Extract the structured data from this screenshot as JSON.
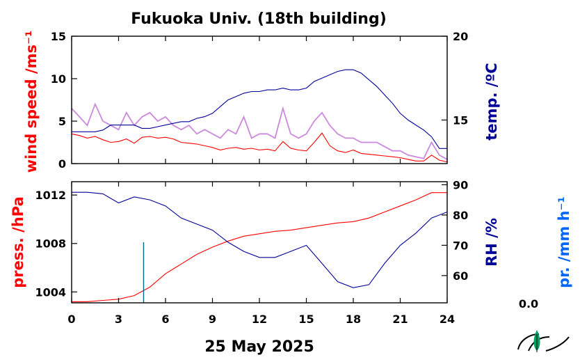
{
  "chart_data": [
    {
      "type": "line",
      "title": "Fukuoka Univ. (18th building)",
      "xlabel": "",
      "xlim": [
        0,
        24
      ],
      "x_ticks": [
        "0",
        "3",
        "6",
        "9",
        "12",
        "15",
        "18",
        "21",
        "24"
      ],
      "y_left": {
        "label": "wind speed /ms⁻¹",
        "lim": [
          0,
          15
        ],
        "ticks": [
          "0",
          "5",
          "10",
          "15"
        ],
        "color": "#ff0000"
      },
      "y_right": {
        "label": "temp. /ºC",
        "lim": [
          12.4,
          20
        ],
        "ticks": [
          "15",
          "20"
        ],
        "color": "#000099"
      },
      "series": [
        {
          "axis": "left",
          "color": "#ff0000",
          "x": [
            0,
            0.5,
            1,
            1.5,
            2,
            2.5,
            3,
            3.5,
            4,
            4.5,
            5,
            5.5,
            6,
            6.5,
            7,
            7.5,
            8,
            8.5,
            9,
            9.5,
            10,
            10.5,
            11,
            11.5,
            12,
            12.5,
            13,
            13.5,
            14,
            14.5,
            15,
            15.5,
            16,
            16.5,
            17,
            17.5,
            18,
            18.5,
            19,
            19.5,
            20,
            20.5,
            21,
            21.5,
            22,
            22.5,
            23,
            23.5,
            24
          ],
          "values": [
            3.5,
            3.3,
            3.0,
            3.2,
            2.8,
            2.5,
            2.6,
            2.9,
            2.4,
            3.1,
            3.2,
            3.0,
            3.1,
            2.9,
            2.5,
            2.4,
            2.3,
            2.1,
            1.9,
            1.6,
            1.8,
            1.9,
            1.7,
            1.8,
            1.6,
            1.7,
            1.5,
            2.6,
            1.8,
            1.6,
            1.5,
            2.5,
            3.6,
            2.1,
            1.5,
            1.3,
            1.6,
            1.2,
            1.1,
            1.0,
            0.9,
            0.8,
            0.7,
            0.5,
            0.3,
            0.3,
            1.0,
            0.4,
            0.2
          ]
        },
        {
          "axis": "left",
          "color": "#cc88dd",
          "x": [
            0,
            0.5,
            1,
            1.5,
            2,
            2.5,
            3,
            3.5,
            4,
            4.5,
            5,
            5.5,
            6,
            6.5,
            7,
            7.5,
            8,
            8.5,
            9,
            9.5,
            10,
            10.5,
            11,
            11.5,
            12,
            12.5,
            13,
            13.5,
            14,
            14.5,
            15,
            15.5,
            16,
            16.5,
            17,
            17.5,
            18,
            18.5,
            19,
            19.5,
            20,
            20.5,
            21,
            21.5,
            22,
            22.5,
            23,
            23.5,
            24
          ],
          "values": [
            6.5,
            5.5,
            4.5,
            7.0,
            5.0,
            4.5,
            4.0,
            6.0,
            4.5,
            5.5,
            6.0,
            5.0,
            5.5,
            4.5,
            4.0,
            4.5,
            3.5,
            4.0,
            3.5,
            3.0,
            4.0,
            3.5,
            5.5,
            3.0,
            3.5,
            3.5,
            3.0,
            6.5,
            3.5,
            3.0,
            3.5,
            5.0,
            6.0,
            4.5,
            3.5,
            3.0,
            3.0,
            2.5,
            2.5,
            2.5,
            2.0,
            1.5,
            1.5,
            1.0,
            0.8,
            0.6,
            2.5,
            1.0,
            0.5
          ]
        },
        {
          "axis": "right",
          "color": "#000099",
          "x": [
            0,
            0.5,
            1,
            1.5,
            2,
            2.5,
            3,
            3.5,
            4,
            4.5,
            5,
            5.5,
            6,
            6.5,
            7,
            7.5,
            8,
            8.5,
            9,
            9.5,
            10,
            10.5,
            11,
            11.5,
            12,
            12.5,
            13,
            13.5,
            14,
            14.5,
            15,
            15.5,
            16,
            16.5,
            17,
            17.5,
            18,
            18.5,
            19,
            19.5,
            20,
            20.5,
            21,
            21.5,
            22,
            22.5,
            23,
            23.5,
            24
          ],
          "values": [
            14.3,
            14.3,
            14.3,
            14.3,
            14.4,
            14.7,
            14.7,
            14.7,
            14.7,
            14.5,
            14.5,
            14.6,
            14.7,
            14.8,
            14.9,
            14.9,
            15.1,
            15.2,
            15.4,
            15.8,
            16.2,
            16.4,
            16.6,
            16.7,
            16.7,
            16.8,
            16.8,
            16.9,
            16.8,
            16.8,
            16.9,
            17.3,
            17.5,
            17.7,
            17.9,
            18.0,
            18.0,
            17.8,
            17.4,
            17.0,
            16.5,
            16.0,
            15.4,
            15.0,
            14.7,
            14.4,
            14.0,
            13.3,
            13.3
          ]
        }
      ]
    },
    {
      "type": "line",
      "xlabel": "25 May 2025",
      "xlim": [
        0,
        24
      ],
      "x_ticks": [
        "0",
        "3",
        "6",
        "9",
        "12",
        "15",
        "18",
        "21",
        "24"
      ],
      "y_left": {
        "label": "press. /hPa",
        "lim": [
          1003.1,
          1013.1
        ],
        "ticks": [
          "1004",
          "1008",
          "1012"
        ],
        "color": "#ff0000"
      },
      "y_right": {
        "label": "RH /%",
        "lim": [
          51,
          91
        ],
        "ticks": [
          "60",
          "70",
          "80",
          "90"
        ],
        "color": "#000099"
      },
      "y_right2": {
        "label": "pr. /mm h⁻¹",
        "value_label": "0.0",
        "color": "#0066ff"
      },
      "series": [
        {
          "axis": "left",
          "color": "#ff0000",
          "x": [
            0,
            1,
            2,
            3,
            4,
            5,
            6,
            7,
            8,
            9,
            10,
            11,
            12,
            13,
            14,
            15,
            16,
            17,
            18,
            19,
            20,
            21,
            22,
            23,
            24
          ],
          "values": [
            1003.2,
            1003.2,
            1003.3,
            1003.4,
            1003.7,
            1004.4,
            1005.5,
            1006.3,
            1007.1,
            1007.7,
            1008.2,
            1008.6,
            1008.8,
            1009.0,
            1009.1,
            1009.3,
            1009.5,
            1009.7,
            1009.8,
            1010.1,
            1010.6,
            1011.1,
            1011.6,
            1012.2,
            1012.2
          ]
        },
        {
          "axis": "right",
          "color": "#000099",
          "x": [
            0,
            1,
            2,
            3,
            4,
            5,
            6,
            7,
            8,
            9,
            10,
            11,
            12,
            13,
            14,
            15,
            16,
            17,
            18,
            19,
            20,
            21,
            22,
            23,
            24
          ],
          "values": [
            87.5,
            87.5,
            87,
            84,
            86,
            85,
            83,
            79,
            77,
            75,
            71,
            68,
            66,
            66,
            68,
            70,
            64,
            58,
            56,
            57,
            64,
            70,
            74,
            79,
            81
          ]
        },
        {
          "axis": "right2",
          "color": "#006688",
          "type": "bar",
          "x": [
            4.6
          ],
          "values": [
            0.15
          ]
        }
      ]
    }
  ]
}
